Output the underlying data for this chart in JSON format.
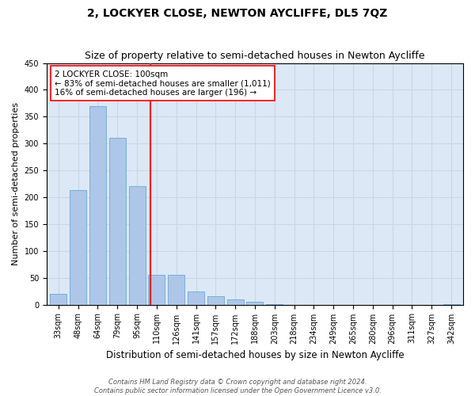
{
  "title": "2, LOCKYER CLOSE, NEWTON AYCLIFFE, DL5 7QZ",
  "subtitle": "Size of property relative to semi-detached houses in Newton Aycliffe",
  "xlabel": "Distribution of semi-detached houses by size in Newton Aycliffe",
  "ylabel": "Number of semi-detached properties",
  "categories": [
    "33sqm",
    "48sqm",
    "64sqm",
    "79sqm",
    "95sqm",
    "110sqm",
    "126sqm",
    "141sqm",
    "157sqm",
    "172sqm",
    "188sqm",
    "203sqm",
    "218sqm",
    "234sqm",
    "249sqm",
    "265sqm",
    "280sqm",
    "296sqm",
    "311sqm",
    "327sqm",
    "342sqm"
  ],
  "values": [
    20,
    213,
    370,
    310,
    220,
    55,
    55,
    25,
    15,
    10,
    5,
    1,
    0,
    0,
    0,
    0,
    0,
    0,
    0,
    0,
    1
  ],
  "bar_color": "#aec6e8",
  "bar_edge_color": "#6aaad4",
  "grid_color": "#c8d8e8",
  "background_color": "#dce8f5",
  "vline_x_index": 4.67,
  "vline_color": "red",
  "annotation_text": "2 LOCKYER CLOSE: 100sqm\n← 83% of semi-detached houses are smaller (1,011)\n16% of semi-detached houses are larger (196) →",
  "annotation_box_color": "white",
  "annotation_box_edge_color": "red",
  "ylim": [
    0,
    450
  ],
  "yticks": [
    0,
    50,
    100,
    150,
    200,
    250,
    300,
    350,
    400,
    450
  ],
  "footnote": "Contains HM Land Registry data © Crown copyright and database right 2024.\nContains public sector information licensed under the Open Government Licence v3.0.",
  "title_fontsize": 10,
  "subtitle_fontsize": 9,
  "xlabel_fontsize": 8.5,
  "ylabel_fontsize": 8,
  "tick_fontsize": 7,
  "annotation_fontsize": 7.5,
  "footnote_fontsize": 6
}
